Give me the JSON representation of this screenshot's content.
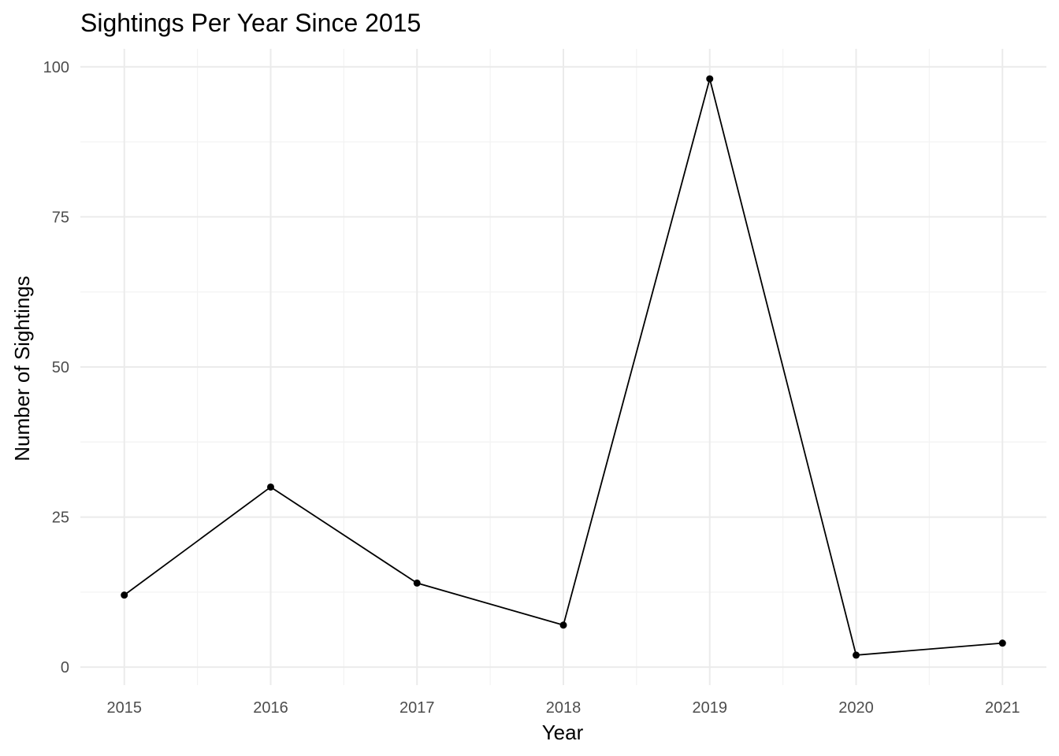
{
  "chart_data": {
    "type": "line",
    "title": "Sightings Per Year Since 2015",
    "xlabel": "Year",
    "ylabel": "Number of Sightings",
    "x": [
      2015,
      2016,
      2017,
      2018,
      2019,
      2020,
      2021
    ],
    "series": [
      {
        "values": [
          12,
          30,
          14,
          7,
          98,
          2,
          4
        ],
        "color": "#000000"
      }
    ],
    "xlim": [
      2014.7,
      2021.3
    ],
    "ylim": [
      -3,
      103
    ],
    "xticks": [
      2015,
      2016,
      2017,
      2018,
      2019,
      2020,
      2021
    ],
    "yticks": [
      0,
      25,
      50,
      75,
      100
    ],
    "grid": true,
    "legend": "none"
  }
}
